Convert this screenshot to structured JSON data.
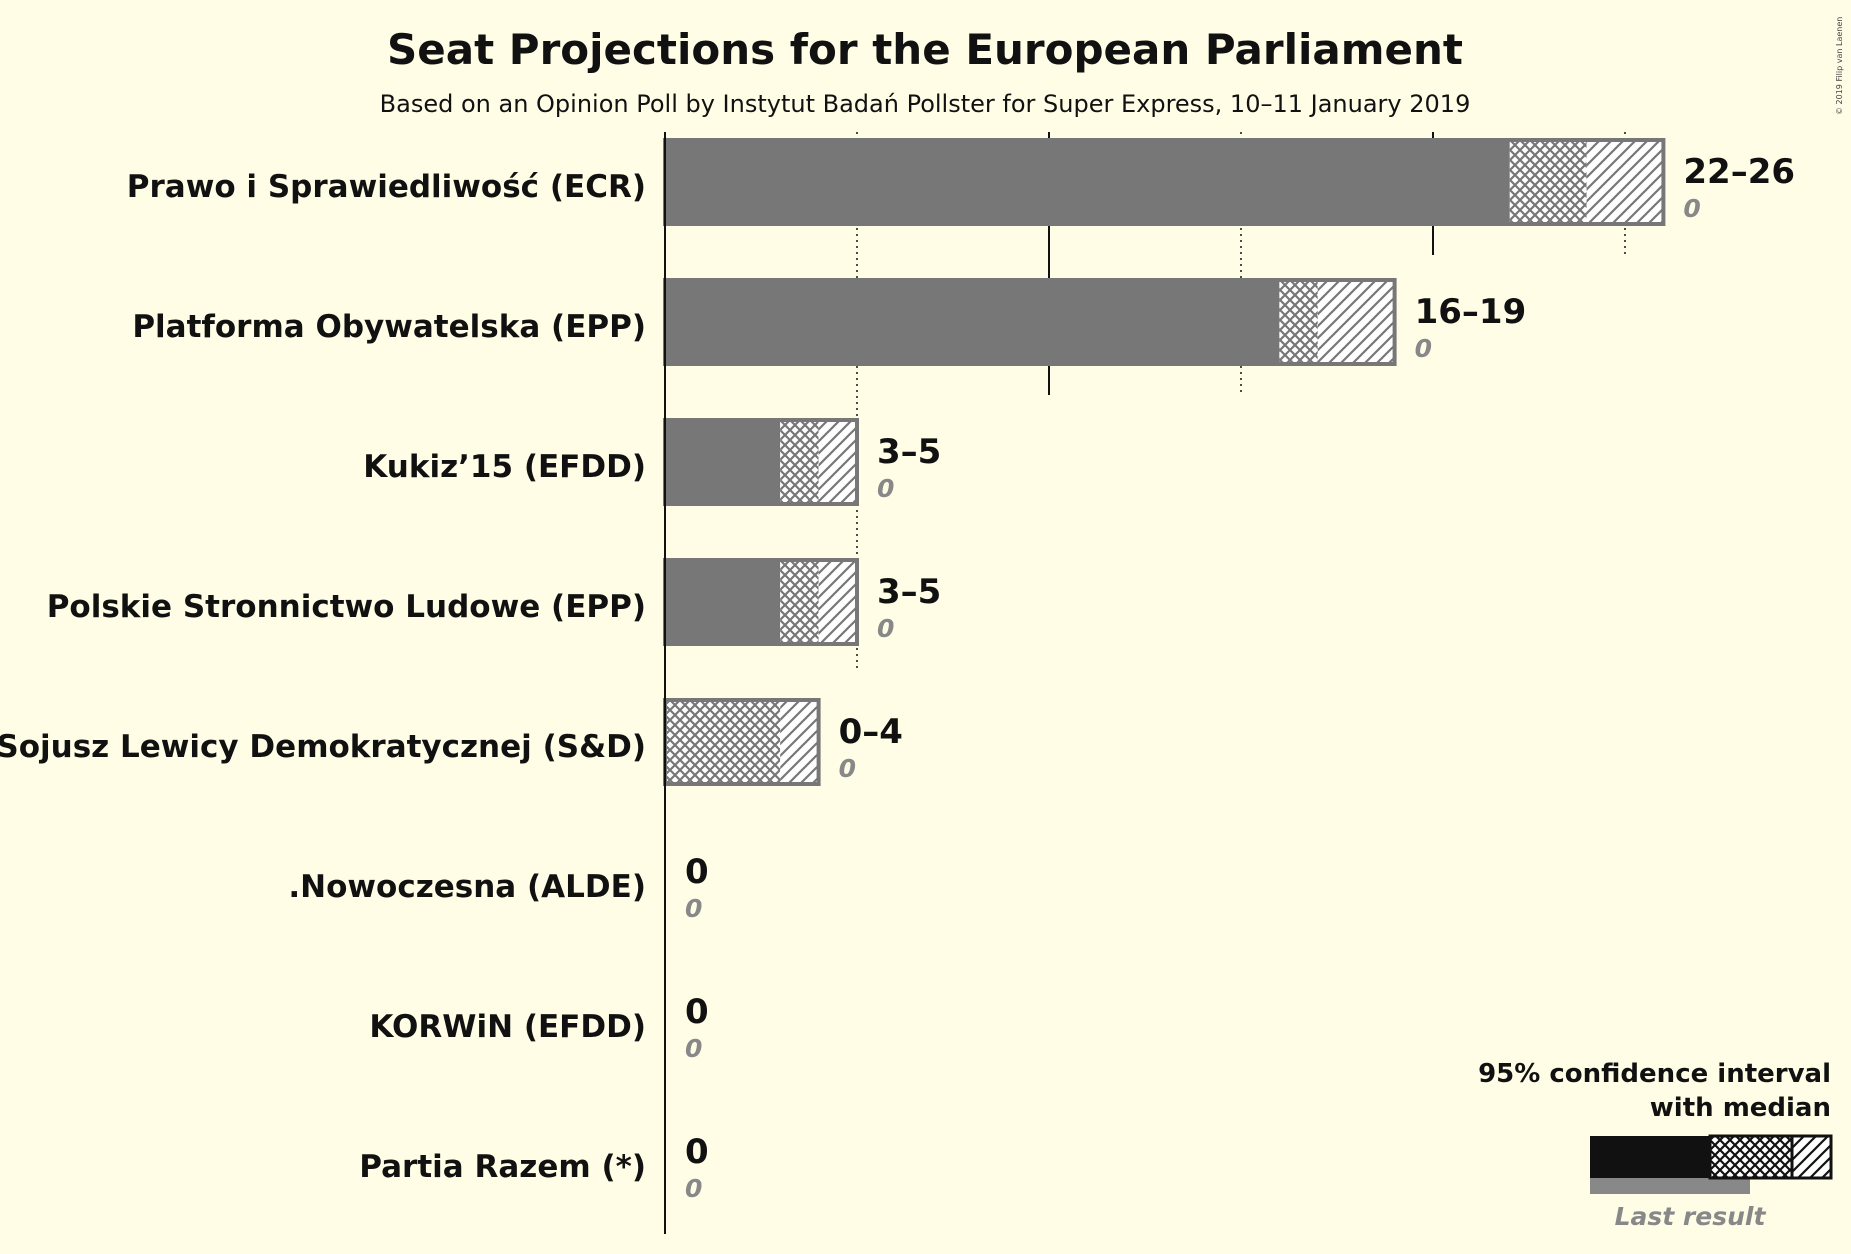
{
  "chart_data": {
    "type": "bar",
    "orientation": "horizontal",
    "title": "Seat Projections for the European Parliament",
    "subtitle": "Based on an Opinion Poll by Instytut Badań Pollster for Super Express, 10–11 January 2019",
    "xlim": [
      0,
      26
    ],
    "gridlines": [
      5,
      10,
      15,
      20,
      25
    ],
    "categories": [
      "Prawo i Sprawiedliwość (ECR)",
      "Platforma Obywatelska (EPP)",
      "Kukiz’15 (EFDD)",
      "Polskie Stronnictwo Ludowe (EPP)",
      "Sojusz Lewicy Demokratycznej (S&D)",
      ".Nowoczesna (ALDE)",
      "KORWiN (EFDD)",
      "Partia Razem (*)"
    ],
    "series": [
      {
        "name": "lower bound",
        "values": [
          22,
          16,
          3,
          3,
          0,
          0,
          0,
          0
        ]
      },
      {
        "name": "median",
        "values": [
          24,
          17,
          4,
          4,
          3,
          0,
          0,
          0
        ]
      },
      {
        "name": "upper bound",
        "values": [
          26,
          19,
          5,
          5,
          4,
          0,
          0,
          0
        ]
      },
      {
        "name": "last result",
        "values": [
          0,
          0,
          0,
          0,
          0,
          0,
          0,
          0
        ]
      }
    ],
    "range_labels": [
      "22–26",
      "16–19",
      "3–5",
      "3–5",
      "0–4",
      "0",
      "0",
      "0"
    ],
    "last_labels": [
      "0",
      "0",
      "0",
      "0",
      "0",
      "0",
      "0",
      "0"
    ],
    "colors": {
      "bar": "#777777",
      "bar_stroke": "#777777",
      "hatch_bg": "#ffffff",
      "legend_bar": "#111111",
      "last_result": "#888888",
      "background": "#fffde6"
    }
  },
  "legend": {
    "line1": "95% confidence interval",
    "line2": "with median",
    "last_result": "Last result"
  },
  "copyright": "© 2019 Filip van Laenen"
}
